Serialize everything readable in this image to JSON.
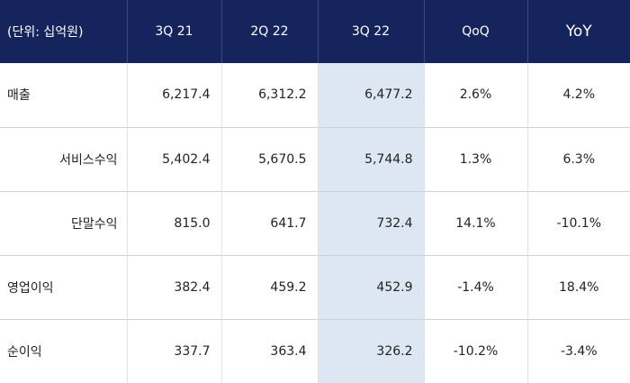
{
  "table": {
    "headers": [
      "(단위: 십억원)",
      "3Q 21",
      "2Q 22",
      "3Q 22",
      "QoQ",
      "YoY"
    ],
    "rows": [
      {
        "label": "매출",
        "indent": false,
        "values": [
          "6,217.4",
          "6,312.2",
          "6,477.2",
          "2.6%",
          "4.2%"
        ]
      },
      {
        "label": "서비스수익",
        "indent": true,
        "values": [
          "5,402.4",
          "5,670.5",
          "5,744.8",
          "1.3%",
          "6.3%"
        ]
      },
      {
        "label": "단말수익",
        "indent": true,
        "values": [
          "815.0",
          "641.7",
          "732.4",
          "14.1%",
          "-10.1%"
        ]
      },
      {
        "label": "영업이익",
        "indent": false,
        "values": [
          "382.4",
          "459.2",
          "452.9",
          "-1.4%",
          "18.4%"
        ]
      },
      {
        "label": "순이익",
        "indent": false,
        "values": [
          "337.7",
          "363.4",
          "326.2",
          "-10.2%",
          "-3.4%"
        ]
      }
    ]
  },
  "colors": {
    "header_bg": "#16245e",
    "header_text": "#ffffff",
    "highlight_column": "#dde7f3"
  }
}
